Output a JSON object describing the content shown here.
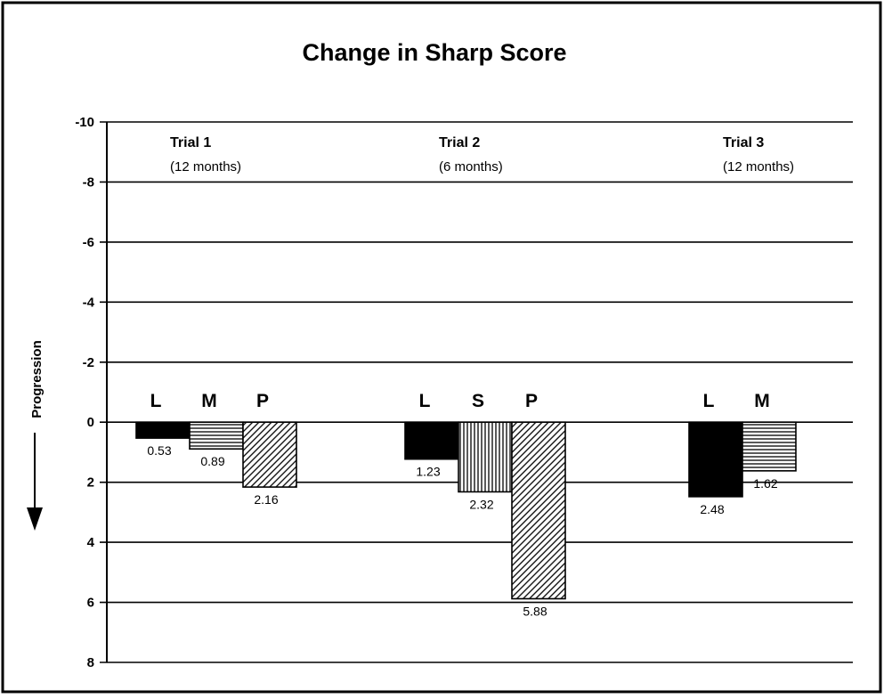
{
  "chart_data": {
    "type": "bar",
    "title": "Change in Sharp Score",
    "ylabel": "Progression",
    "ylim": [
      -10,
      8
    ],
    "y_inverted": true,
    "yticks": [
      "-10",
      "-8",
      "-6",
      "-4",
      "-2",
      "0",
      "2",
      "4",
      "6",
      "8"
    ],
    "ytick_values": [
      -10,
      -8,
      -6,
      -4,
      -2,
      0,
      2,
      4,
      6,
      8
    ],
    "grid": true,
    "groups": [
      {
        "name": "Trial 1",
        "subtitle": "(12 months)",
        "bars": [
          {
            "label": "L",
            "value": 0.53,
            "value_label": "0.53",
            "pattern": "solid"
          },
          {
            "label": "M",
            "value": 0.89,
            "value_label": "0.89",
            "pattern": "horizontal"
          },
          {
            "label": "P",
            "value": 2.16,
            "value_label": "2.16",
            "pattern": "diagonal"
          }
        ]
      },
      {
        "name": "Trial 2",
        "subtitle": "(6 months)",
        "bars": [
          {
            "label": "L",
            "value": 1.23,
            "value_label": "1.23",
            "pattern": "solid"
          },
          {
            "label": "S",
            "value": 2.32,
            "value_label": "2.32",
            "pattern": "vertical"
          },
          {
            "label": "P",
            "value": 5.88,
            "value_label": "5.88",
            "pattern": "diagonal"
          }
        ]
      },
      {
        "name": "Trial 3",
        "subtitle": "(12 months)",
        "bars": [
          {
            "label": "L",
            "value": 2.48,
            "value_label": "2.48",
            "pattern": "solid"
          },
          {
            "label": "M",
            "value": 1.62,
            "value_label": "1.62",
            "pattern": "horizontal"
          }
        ]
      }
    ],
    "colors": {
      "bar": "#000000",
      "background": "#ffffff"
    }
  }
}
